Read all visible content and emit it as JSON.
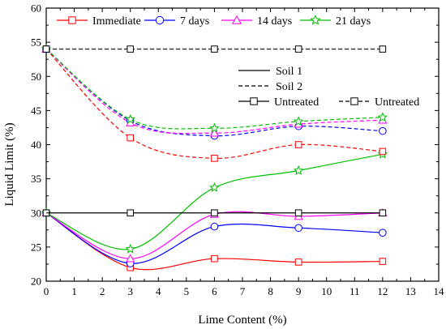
{
  "chart_data": {
    "type": "line",
    "xlabel": "Lime Content (%)",
    "ylabel": "Liquid Limit (%)",
    "xlim": [
      0,
      14
    ],
    "ylim": [
      20,
      60
    ],
    "xticks": [
      "0",
      "1",
      "2",
      "3",
      "4",
      "5",
      "6",
      "7",
      "8",
      "9",
      "10",
      "11",
      "12",
      "13",
      "14"
    ],
    "yticks": [
      "20",
      "25",
      "30",
      "35",
      "40",
      "45",
      "50",
      "55",
      "60"
    ],
    "grid": false,
    "legend_top": [
      {
        "label": "Immediate",
        "color": "#ff0000",
        "marker": "square"
      },
      {
        "label": "7 days",
        "color": "#0000ff",
        "marker": "circle"
      },
      {
        "label": "14 days",
        "color": "#ff00ff",
        "marker": "triangle"
      },
      {
        "label": "21 days",
        "color": "#00c000",
        "marker": "star"
      }
    ],
    "legend_soil": [
      {
        "label": "Soil 1",
        "dash": "solid"
      },
      {
        "label": "Soil 2",
        "dash": "dashed"
      }
    ],
    "legend_untreated": [
      {
        "label": "Untreated",
        "dash": "solid",
        "marker": "square"
      },
      {
        "label": "Untreated",
        "dash": "dashed",
        "marker": "square"
      }
    ],
    "series": [
      {
        "name": "Immediate",
        "soil": "Soil 1",
        "color": "#ff0000",
        "marker": "square",
        "dash": "solid",
        "x": [
          0,
          3,
          6,
          9,
          12
        ],
        "y": [
          30,
          22.0,
          23.3,
          22.8,
          22.9
        ]
      },
      {
        "name": "7 days",
        "soil": "Soil 1",
        "color": "#0000ff",
        "marker": "circle",
        "dash": "solid",
        "x": [
          0,
          3,
          6,
          9,
          12
        ],
        "y": [
          30,
          22.6,
          28.0,
          27.8,
          27.1
        ]
      },
      {
        "name": "14 days",
        "soil": "Soil 1",
        "color": "#ff00ff",
        "marker": "triangle",
        "dash": "solid",
        "x": [
          0,
          3,
          6,
          9,
          12
        ],
        "y": [
          30,
          23.3,
          29.8,
          29.5,
          30.0
        ]
      },
      {
        "name": "21 days",
        "soil": "Soil 1",
        "color": "#00c000",
        "marker": "star",
        "dash": "solid",
        "x": [
          0,
          3,
          6,
          9,
          12
        ],
        "y": [
          30,
          24.7,
          33.7,
          36.2,
          38.6
        ]
      },
      {
        "name": "Immediate",
        "soil": "Soil 2",
        "color": "#ff0000",
        "marker": "square",
        "dash": "dashed",
        "x": [
          0,
          3,
          6,
          9,
          12
        ],
        "y": [
          54,
          41.0,
          38.0,
          40.0,
          39.0
        ]
      },
      {
        "name": "7 days",
        "soil": "Soil 2",
        "color": "#0000ff",
        "marker": "circle",
        "dash": "dashed",
        "x": [
          0,
          3,
          6,
          9,
          12
        ],
        "y": [
          54,
          43.5,
          41.3,
          42.7,
          42.0
        ]
      },
      {
        "name": "14 days",
        "soil": "Soil 2",
        "color": "#ff00ff",
        "marker": "triangle",
        "dash": "dashed",
        "x": [
          0,
          3,
          6,
          9,
          12
        ],
        "y": [
          54,
          43.2,
          41.7,
          43.0,
          43.6
        ]
      },
      {
        "name": "21 days",
        "soil": "Soil 2",
        "color": "#00c000",
        "marker": "star",
        "dash": "dashed",
        "x": [
          0,
          3,
          6,
          9,
          12
        ],
        "y": [
          54,
          43.7,
          42.4,
          43.4,
          44.0
        ]
      },
      {
        "name": "Untreated",
        "soil": "Soil 1",
        "color": "#000000",
        "marker": "square",
        "dash": "solid",
        "x": [
          0,
          3,
          6,
          9,
          12
        ],
        "y": [
          30,
          30,
          30,
          30,
          30
        ]
      },
      {
        "name": "Untreated",
        "soil": "Soil 2",
        "color": "#000000",
        "marker": "square",
        "dash": "dashed",
        "x": [
          0,
          3,
          6,
          9,
          12
        ],
        "y": [
          54,
          54,
          54,
          54,
          54
        ]
      }
    ]
  }
}
